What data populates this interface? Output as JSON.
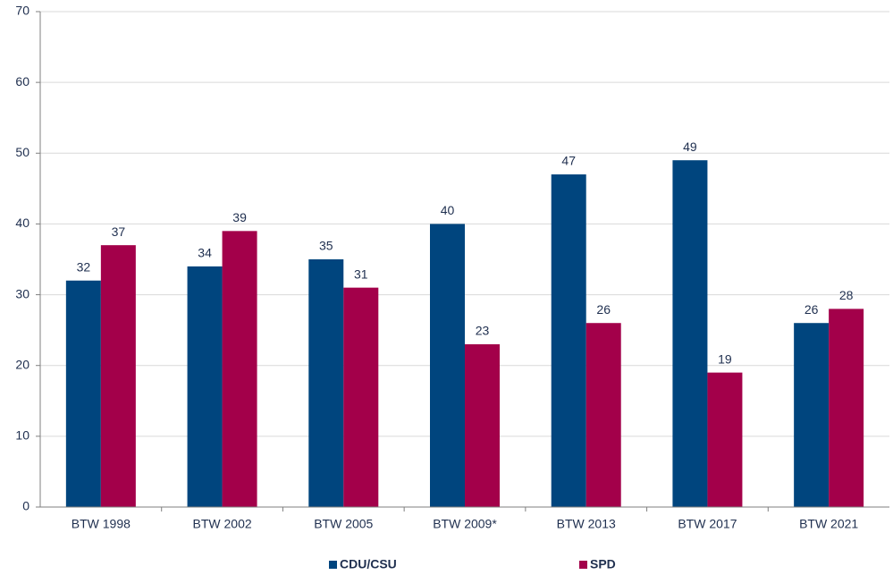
{
  "chart_data": {
    "type": "bar",
    "categories": [
      "BTW 1998",
      "BTW 2002",
      "BTW 2005",
      "BTW 2009*",
      "BTW 2013",
      "BTW 2017",
      "BTW 2021"
    ],
    "series": [
      {
        "name": "CDU/CSU",
        "color": "#00457e",
        "values": [
          32,
          34,
          35,
          40,
          47,
          49,
          26
        ]
      },
      {
        "name": "SPD",
        "color": "#a3004a",
        "values": [
          37,
          39,
          31,
          23,
          26,
          19,
          28
        ]
      }
    ],
    "ylim": [
      0,
      70
    ],
    "yticks": [
      0,
      10,
      20,
      30,
      40,
      50,
      60,
      70
    ],
    "grid": true,
    "legend": "bottom"
  }
}
